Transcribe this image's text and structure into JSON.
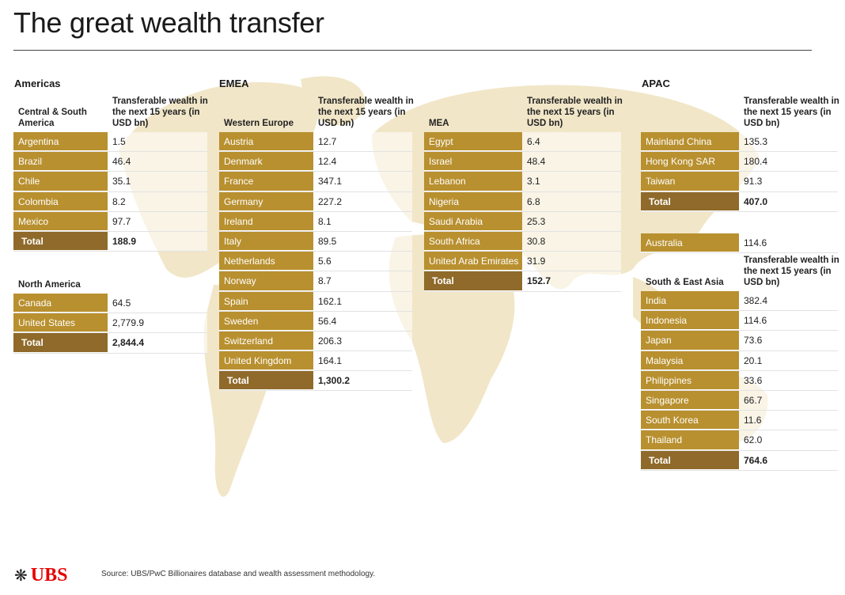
{
  "title": "The great wealth transfer",
  "column_header": "Transferable wealth in the next 15 years (in USD bn)",
  "regions": {
    "americas": "Americas",
    "emea": "EMEA",
    "apac": "APAC"
  },
  "tables": [
    {
      "id": "csa",
      "subtitle": "Central & South America",
      "rows": [
        [
          "Argentina",
          "1.5"
        ],
        [
          "Brazil",
          "46.4"
        ],
        [
          "Chile",
          "35.1"
        ],
        [
          "Colombia",
          "8.2"
        ],
        [
          "Mexico",
          "97.7"
        ]
      ],
      "total": [
        "Total",
        "188.9"
      ],
      "show_col": true
    },
    {
      "id": "na",
      "subtitle": "North America",
      "rows": [
        [
          "Canada",
          "64.5"
        ],
        [
          "United States",
          "2,779.9"
        ]
      ],
      "total": [
        "Total",
        "2,844.4"
      ],
      "show_col": false
    },
    {
      "id": "we",
      "subtitle": "Western Europe",
      "rows": [
        [
          "Austria",
          "12.7"
        ],
        [
          "Denmark",
          "12.4"
        ],
        [
          "France",
          "347.1"
        ],
        [
          "Germany",
          "227.2"
        ],
        [
          "Ireland",
          "8.1"
        ],
        [
          "Italy",
          "89.5"
        ],
        [
          "Netherlands",
          "5.6"
        ],
        [
          "Norway",
          "8.7"
        ],
        [
          "Spain",
          "162.1"
        ],
        [
          "Sweden",
          "56.4"
        ],
        [
          "Switzerland",
          "206.3"
        ],
        [
          "United Kingdom",
          "164.1"
        ]
      ],
      "total": [
        "Total",
        "1,300.2"
      ],
      "show_col": true
    },
    {
      "id": "mea",
      "subtitle": "MEA",
      "rows": [
        [
          "Egypt",
          "6.4"
        ],
        [
          "Israel",
          "48.4"
        ],
        [
          "Lebanon",
          "3.1"
        ],
        [
          "Nigeria",
          "6.8"
        ],
        [
          "Saudi Arabia",
          "25.3"
        ],
        [
          "South Africa",
          "30.8"
        ],
        [
          "United Arab Emirates",
          "31.9"
        ]
      ],
      "total": [
        "Total",
        "152.7"
      ],
      "show_col": true
    },
    {
      "id": "gc",
      "subtitle": "",
      "rows": [
        [
          "Mainland China",
          "135.3"
        ],
        [
          "Hong Kong SAR",
          "180.4"
        ],
        [
          "Taiwan",
          "91.3"
        ]
      ],
      "total": [
        "Total",
        "407.0"
      ],
      "show_col": true
    },
    {
      "id": "au",
      "subtitle": "",
      "rows": [
        [
          "Australia",
          "114.6"
        ]
      ],
      "total": null,
      "show_col": false
    },
    {
      "id": "sea",
      "subtitle": "South & East Asia",
      "rows": [
        [
          "India",
          "382.4"
        ],
        [
          "Indonesia",
          "114.6"
        ],
        [
          "Japan",
          "73.6"
        ],
        [
          "Malaysia",
          "20.1"
        ],
        [
          "Philippines",
          "33.6"
        ],
        [
          "Singapore",
          "66.7"
        ],
        [
          "South Korea",
          "11.6"
        ],
        [
          "Thailand",
          "62.0"
        ]
      ],
      "total": [
        "Total",
        "764.6"
      ],
      "show_col": true
    }
  ],
  "source": "Source: UBS/PwC Billionaires database and wealth assessment methodology.",
  "logo": "UBS",
  "colors": {
    "country_cell": "#b8902f",
    "total_cell": "#8f6a2a",
    "map": "#f1e6c8",
    "logo": "#e60000"
  }
}
